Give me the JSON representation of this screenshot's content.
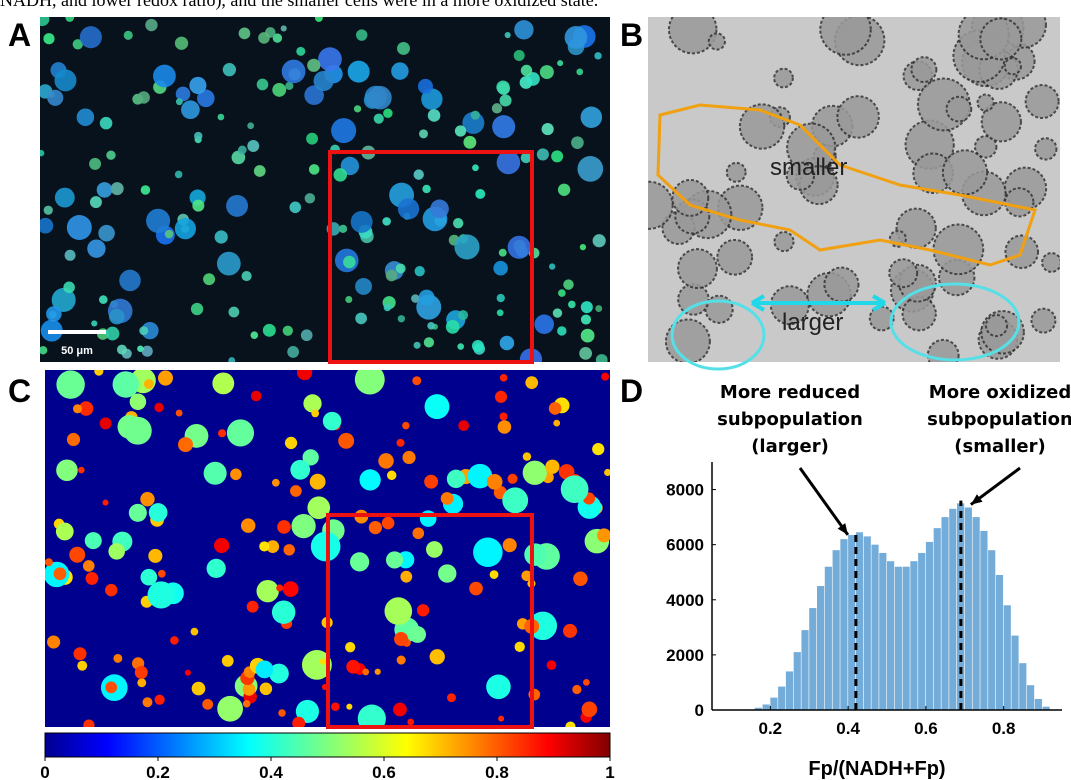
{
  "caption": "NADH, and lower redox ratio), and the smaller cells were in a more oxidized state.",
  "panels": {
    "A": {
      "label": "A",
      "scale_bar": "50 μm"
    },
    "B": {
      "label": "B",
      "region_labels": [
        "smaller",
        "larger"
      ]
    },
    "C": {
      "label": "C"
    },
    "D": {
      "label": "D"
    }
  },
  "colorbar": {
    "lim": [
      0,
      1
    ],
    "ticks": [
      0,
      0.2,
      0.4,
      0.6,
      0.8,
      1
    ]
  },
  "chart_data": {
    "type": "histogram",
    "xlabel": "Fp/(NADH+Fp)",
    "color": "#74acd9",
    "bins": [
      0.14,
      0.16,
      0.18,
      0.2,
      0.22,
      0.24,
      0.26,
      0.28,
      0.3,
      0.32,
      0.34,
      0.36,
      0.38,
      0.4,
      0.42,
      0.44,
      0.46,
      0.48,
      0.5,
      0.52,
      0.54,
      0.56,
      0.58,
      0.6,
      0.62,
      0.64,
      0.66,
      0.68,
      0.7,
      0.72,
      0.74,
      0.76,
      0.78,
      0.8,
      0.82,
      0.84,
      0.86,
      0.88,
      0.9,
      0.92,
      0.94
    ],
    "values": [
      20,
      80,
      200,
      450,
      850,
      1400,
      2100,
      2900,
      3700,
      4500,
      5200,
      5800,
      6200,
      6350,
      6450,
      6300,
      6000,
      5700,
      5400,
      5200,
      5200,
      5400,
      5700,
      6100,
      6600,
      7000,
      7300,
      7500,
      7350,
      7000,
      6500,
      5800,
      4900,
      3800,
      2700,
      1700,
      900,
      400,
      120,
      20
    ],
    "xlim": [
      0.05,
      0.95
    ],
    "ylim": [
      0,
      9000
    ],
    "xticks": [
      0.2,
      0.4,
      0.6,
      0.8
    ],
    "yticks": [
      0,
      2000,
      4000,
      6000,
      8000
    ],
    "reference_lines": [
      {
        "x": 0.42,
        "y": 6500
      },
      {
        "x": 0.69,
        "y": 7600
      }
    ],
    "annotations": [
      {
        "lines": [
          "More reduced",
          "subpopulation",
          "(larger)"
        ]
      },
      {
        "lines": [
          "More oxidized",
          "subpopulation",
          "(smaller)"
        ]
      }
    ]
  }
}
